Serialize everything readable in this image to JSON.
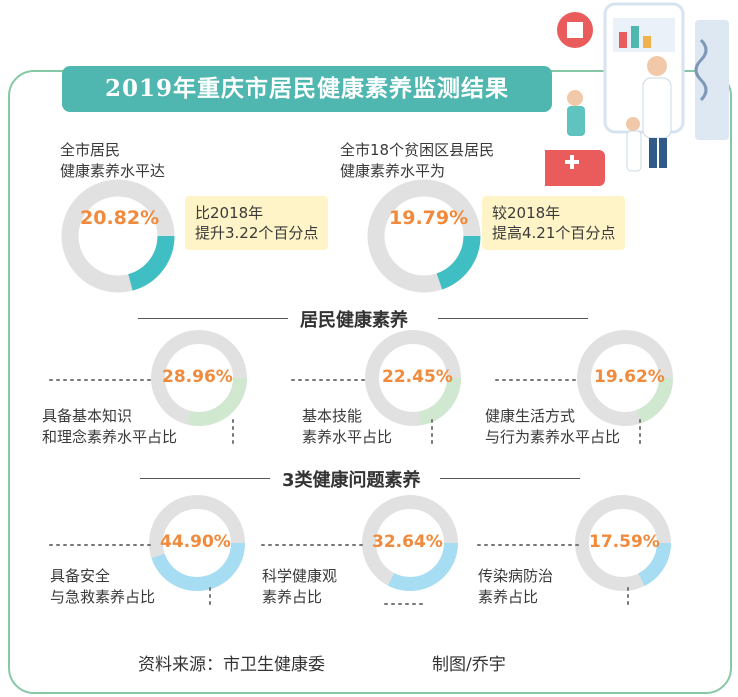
{
  "title": "2019年重庆市居民健康素养监测结果",
  "summary": [
    {
      "label_line1": "全市居民",
      "label_line2": "健康素养水平达",
      "value_text": "20.82%",
      "note_line1": "比2018年",
      "note_line2": "提升3.22个百分点"
    },
    {
      "label_line1": "全市18个贫困区县居民",
      "label_line2": "健康素养水平为",
      "value_text": "19.79%",
      "note_line1": "较2018年",
      "note_line2": "提高4.21个百分点"
    }
  ],
  "section1": {
    "title": "居民健康素养",
    "items": [
      {
        "value_text": "28.96%",
        "label_line1": "具备基本知识",
        "label_line2": "和理念素养水平占比"
      },
      {
        "value_text": "22.45%",
        "label_line1": "基本技能",
        "label_line2": "素养水平占比"
      },
      {
        "value_text": "19.62%",
        "label_line1": "健康生活方式",
        "label_line2": "与行为素养水平占比"
      }
    ]
  },
  "section2": {
    "title": "3类健康问题素养",
    "items": [
      {
        "value_text": "44.90%",
        "label_line1": "具备安全",
        "label_line2": "与急救素养占比"
      },
      {
        "value_text": "32.64%",
        "label_line1": "科学健康观",
        "label_line2": "素养占比"
      },
      {
        "value_text": "17.59%",
        "label_line1": "传染病防治",
        "label_line2": "素养占比"
      }
    ]
  },
  "footer": {
    "source": "资料来源：市卫生健康委",
    "credit": "制图/乔宇"
  },
  "colors": {
    "banner": "#4fb6b0",
    "frame": "#86c8a5",
    "ring_track": "#e1e1e1",
    "value_text": "#f08a3c",
    "summary_fill": "#3fbfc4",
    "section1_fill": "#cfe8cf",
    "section2_fill": "#a6ddf2",
    "note_bg": "#fff4c8"
  },
  "chart_data": {
    "type": "pie",
    "title": "2019年重庆市居民健康素养监测结果",
    "series": [
      {
        "name": "全市居民健康素养水平",
        "value": 20.82,
        "unit": "%"
      },
      {
        "name": "全市18个贫困区县居民健康素养水平",
        "value": 19.79,
        "unit": "%"
      },
      {
        "name": "具备基本知识和理念素养水平占比",
        "value": 28.96,
        "unit": "%"
      },
      {
        "name": "基本技能素养水平占比",
        "value": 22.45,
        "unit": "%"
      },
      {
        "name": "健康生活方式与行为素养水平占比",
        "value": 19.62,
        "unit": "%"
      },
      {
        "name": "具备安全与急救素养占比",
        "value": 44.9,
        "unit": "%"
      },
      {
        "name": "科学健康观素养占比",
        "value": 32.64,
        "unit": "%"
      },
      {
        "name": "传染病防治素养占比",
        "value": 17.59,
        "unit": "%"
      }
    ],
    "change_vs_2018": [
      3.22,
      4.21
    ]
  }
}
